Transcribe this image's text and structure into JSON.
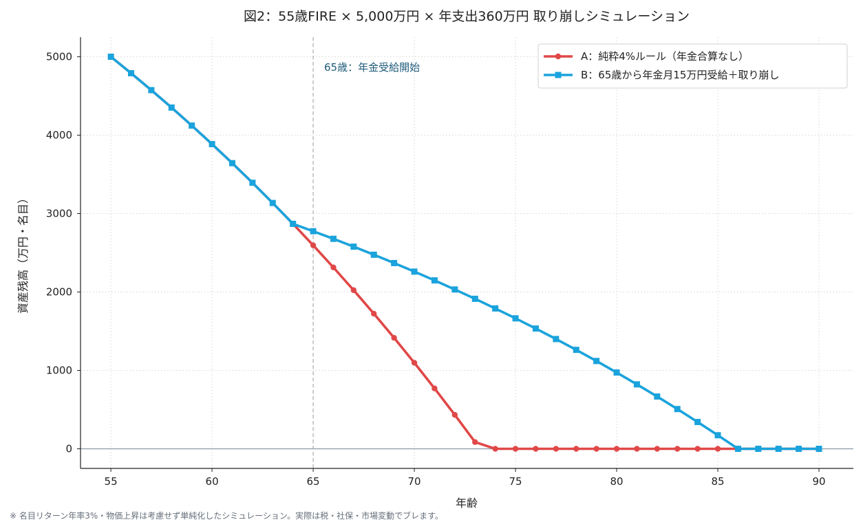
{
  "chart_data": {
    "type": "line",
    "title": "図2：55歳FIRE × 5,000万円 × 年支出360万円 取り崩しシミュレーション",
    "xlabel": "年齢",
    "ylabel": "資産残高（万円・名目）",
    "xlim": [
      53.5,
      91.7
    ],
    "ylim": [
      -250,
      5250
    ],
    "x_ticks": [
      55,
      60,
      65,
      70,
      75,
      80,
      85,
      90
    ],
    "y_ticks": [
      0,
      1000,
      2000,
      3000,
      4000,
      5000
    ],
    "grid": true,
    "legend": "top-right",
    "x": [
      55,
      56,
      57,
      58,
      59,
      60,
      61,
      62,
      63,
      64,
      65,
      66,
      67,
      68,
      69,
      70,
      71,
      72,
      73,
      74,
      75,
      76,
      77,
      78,
      79,
      80,
      81,
      82,
      83,
      84,
      85,
      86,
      87,
      88,
      89,
      90
    ],
    "series": [
      {
        "name": "A：純粋4%ルール（年金合算なし）",
        "color": "#e04848",
        "marker": "circle",
        "values": [
          5000,
          4790,
          4574,
          4352,
          4122,
          3886,
          3643,
          3393,
          3135,
          2869,
          2595,
          2313,
          2023,
          1723,
          1415,
          1097,
          770,
          433,
          86,
          0,
          0,
          0,
          0,
          0,
          0,
          0,
          0,
          0,
          0,
          0,
          0,
          0,
          0,
          0,
          0,
          0
        ]
      },
      {
        "name": "B：65歳から年金月15万円受給＋取り崩し",
        "color": "#1aa3dc",
        "marker": "square",
        "values": [
          5000,
          4790,
          4574,
          4352,
          4122,
          3886,
          3643,
          3393,
          3135,
          2869,
          2775,
          2678,
          2578,
          2475,
          2369,
          2260,
          2148,
          2032,
          1913,
          1790,
          1664,
          1534,
          1400,
          1262,
          1120,
          973,
          822,
          667,
          507,
          342,
          173,
          0,
          0,
          0,
          0,
          0
        ]
      }
    ],
    "annotations": [
      {
        "type": "vline",
        "x": 65,
        "text": "65歳：年金受給開始"
      }
    ]
  },
  "footnote": "※ 名目リターン年率3%・物価上昇は考慮せず単純化したシミュレーション。実際は税・社保・市場変動でブレます。"
}
